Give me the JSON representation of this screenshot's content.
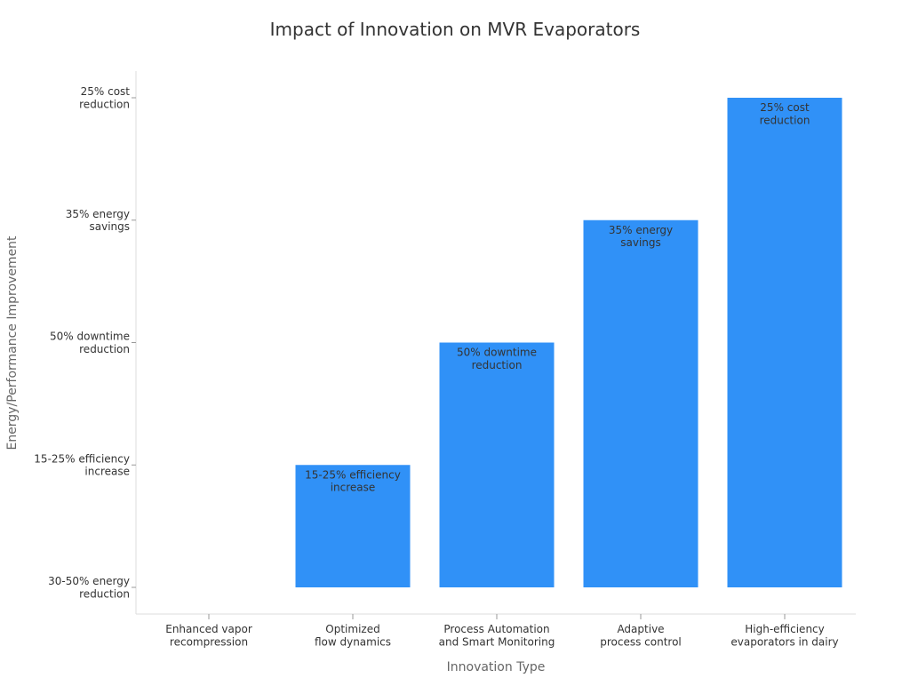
{
  "chart_data": {
    "type": "bar",
    "title": "Impact of Innovation on MVR Evaporators",
    "xlabel": "Innovation Type",
    "ylabel": "Energy/Performance Improvement",
    "categories": [
      "Enhanced vapor recompression",
      "Optimized flow dynamics",
      "Process Automation and Smart Monitoring",
      "Adaptive process control",
      "High-efficiency evaporators in dairy"
    ],
    "y_categories": [
      "30-50% energy reduction",
      "15-25% efficiency increase",
      "50% downtime reduction",
      "35% energy savings",
      "25% cost reduction"
    ],
    "values": [
      "30-50% energy reduction",
      "15-25% efficiency increase",
      "50% downtime reduction",
      "35% energy savings",
      "25% cost reduction"
    ],
    "data_labels": [
      "",
      "15-25% efficiency increase",
      "50% downtime reduction",
      "35% energy savings",
      "25% cost reduction"
    ],
    "bar_color": "#3091f7",
    "grid": false
  }
}
